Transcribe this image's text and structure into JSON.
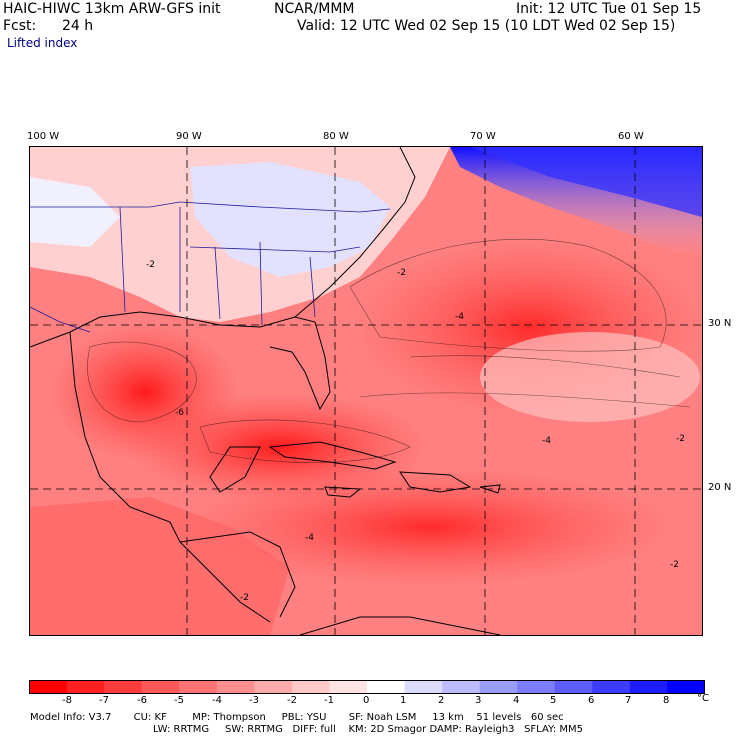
{
  "header": {
    "model": "HAIC-HIWC 13km ARW-GFS init",
    "org": "NCAR/MMM",
    "init": "Init: 12 UTC Tue 01 Sep 15",
    "fcst_label": "Fcst:",
    "fcst_value": "24 h",
    "valid": "Valid: 12 UTC Wed 02 Sep 15 (10 LDT Wed 02 Sep 15)",
    "field": "Lifted index"
  },
  "map": {
    "lon_labels": [
      "100 W",
      "90 W",
      "80 W",
      "70 W",
      "60 W"
    ],
    "lat_labels": [
      "30 N",
      "20 N"
    ],
    "contour_labels": [
      "-2",
      "-2",
      "-4",
      "-6",
      "-4",
      "-2",
      "-4",
      "-2",
      "-2"
    ]
  },
  "colorbar": {
    "tick_labels": [
      "-8",
      "-7",
      "-6",
      "-5",
      "-4",
      "-3",
      "-2",
      "-1",
      "0",
      "1",
      "2",
      "3",
      "4",
      "5",
      "6",
      "7",
      "8"
    ],
    "unit": "°C",
    "colors": [
      "#ff0000",
      "#ff2020",
      "#ff3c3c",
      "#ff5858",
      "#ff7474",
      "#ff8e8e",
      "#ffaaaa",
      "#ffc8c8",
      "#ffe4e4",
      "#ffffff",
      "#dcdcff",
      "#bcbcff",
      "#9c9cff",
      "#7c7cff",
      "#5c5cff",
      "#3c3cff",
      "#1c1cff",
      "#0000ff"
    ]
  },
  "footer": {
    "line1": "Model Info: V3.7       CU: KF        MP: Thompson     PBL: YSU       SF: Noah LSM     13 km    51 levels   60 sec",
    "line2": "LW: RRTMG     SW: RRTMG   DIFF: full    KM: 2D Smagor DAMP: Rayleigh3   SFLAY: MM5"
  }
}
